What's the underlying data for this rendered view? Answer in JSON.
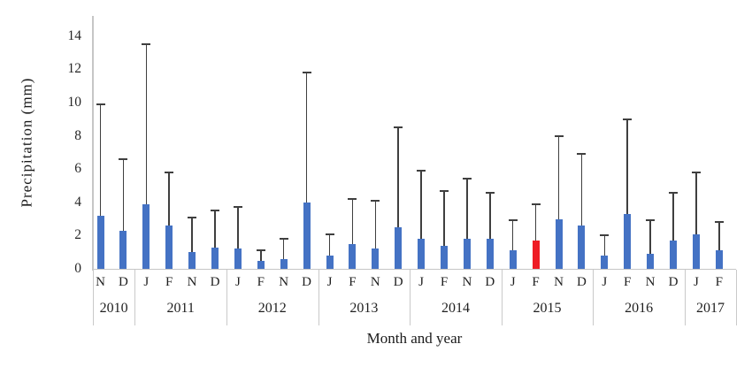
{
  "chart_data": {
    "type": "bar",
    "title": "",
    "xlabel": "Month and year",
    "ylabel": "Precipitation (mm)",
    "ylim": [
      0,
      15
    ],
    "yticks": [
      0,
      2,
      4,
      6,
      8,
      10,
      12,
      14
    ],
    "grid": false,
    "legend_position": "none",
    "bar_color": "#4472c4",
    "highlight_color": "#ee1c25",
    "error_bar_color": "#3f3f3f",
    "axis_color": "#c6c6c6",
    "error_bars": "upper whisker with cap, per bar",
    "groups": [
      {
        "year": "2010",
        "months": [
          {
            "m": "N",
            "v": 3.2,
            "e": 9.9
          },
          {
            "m": "D",
            "v": 2.3,
            "e": 6.6
          }
        ]
      },
      {
        "year": "2011",
        "months": [
          {
            "m": "J",
            "v": 3.9,
            "e": 13.5
          },
          {
            "m": "F",
            "v": 2.6,
            "e": 5.8
          },
          {
            "m": "N",
            "v": 1.0,
            "e": 3.1
          },
          {
            "m": "D",
            "v": 1.3,
            "e": 3.5
          }
        ]
      },
      {
        "year": "2012",
        "months": [
          {
            "m": "J",
            "v": 1.2,
            "e": 3.7
          },
          {
            "m": "F",
            "v": 0.5,
            "e": 1.1
          },
          {
            "m": "N",
            "v": 0.6,
            "e": 1.8
          },
          {
            "m": "D",
            "v": 4.0,
            "e": 11.8
          }
        ]
      },
      {
        "year": "2013",
        "months": [
          {
            "m": "J",
            "v": 0.8,
            "e": 2.1
          },
          {
            "m": "F",
            "v": 1.5,
            "e": 4.2
          },
          {
            "m": "N",
            "v": 1.2,
            "e": 4.1
          },
          {
            "m": "D",
            "v": 2.5,
            "e": 8.5
          }
        ]
      },
      {
        "year": "2014",
        "months": [
          {
            "m": "J",
            "v": 1.8,
            "e": 5.9
          },
          {
            "m": "F",
            "v": 1.4,
            "e": 4.7
          },
          {
            "m": "N",
            "v": 1.8,
            "e": 5.4
          },
          {
            "m": "D",
            "v": 1.8,
            "e": 4.6
          }
        ]
      },
      {
        "year": "2015",
        "months": [
          {
            "m": "J",
            "v": 1.1,
            "e": 2.9
          },
          {
            "m": "F",
            "v": 1.7,
            "e": 3.9,
            "highlight": true
          },
          {
            "m": "N",
            "v": 3.0,
            "e": 8.0
          },
          {
            "m": "D",
            "v": 2.6,
            "e": 6.9
          }
        ]
      },
      {
        "year": "2016",
        "months": [
          {
            "m": "J",
            "v": 0.8,
            "e": 2.0
          },
          {
            "m": "F",
            "v": 3.3,
            "e": 9.0
          },
          {
            "m": "N",
            "v": 0.9,
            "e": 2.9
          },
          {
            "m": "D",
            "v": 1.7,
            "e": 4.6
          }
        ]
      },
      {
        "year": "2017",
        "months": [
          {
            "m": "J",
            "v": 2.1,
            "e": 5.8
          },
          {
            "m": "F",
            "v": 1.1,
            "e": 2.8
          }
        ]
      }
    ]
  }
}
